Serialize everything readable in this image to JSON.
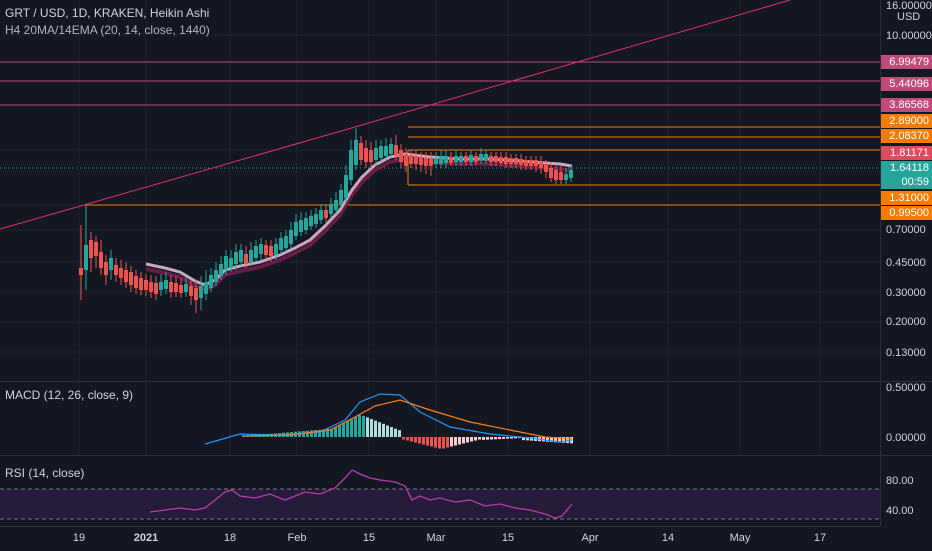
{
  "header": {
    "symbol_line": "GRT / USD, 1D, KRAKEN, Heikin Ashi",
    "indicator_line": "H4 20MA/14EMA (20, 14, close, 1440)"
  },
  "macd": {
    "label": "MACD (12, 26, close, 9)"
  },
  "rsi": {
    "label": "RSI (14, close)"
  },
  "price_axis": {
    "currency": "USD",
    "top_label": "16.00000",
    "ticks": [
      "10.00000",
      "0.70000",
      "0.45000",
      "0.30000",
      "0.20000",
      "0.13000"
    ],
    "tags": [
      {
        "text": "6.99479",
        "color": "#c04a7a"
      },
      {
        "text": "5.44096",
        "color": "#c04a7a"
      },
      {
        "text": "3.86568",
        "color": "#c04a7a"
      },
      {
        "text": "2.89000",
        "color": "#f57c00"
      },
      {
        "text": "2.08370",
        "color": "#f57c00"
      },
      {
        "text": "1.81171",
        "color": "#e04a5e"
      },
      {
        "text": "1.64118",
        "color": "#26a69a"
      },
      {
        "text": "00:59",
        "color": "#26a69a"
      },
      {
        "text": "1.31000",
        "color": "#f57c00"
      },
      {
        "text": "0.99500",
        "color": "#f57c00"
      }
    ]
  },
  "macd_axis": {
    "ticks": [
      "0.50000",
      "0.00000"
    ]
  },
  "rsi_axis": {
    "ticks": [
      "80.00",
      "40.00"
    ]
  },
  "time_axis": {
    "labels": [
      "19",
      "2021",
      "18",
      "Feb",
      "15",
      "Mar",
      "15",
      "Apr",
      "14",
      "May",
      "17"
    ]
  },
  "chart_data": [
    {
      "type": "candlestick",
      "title": "GRT / USD, 1D, KRAKEN, Heikin Ashi",
      "scale": "log",
      "y_ticks": [
        10.0,
        0.7,
        0.45,
        0.3,
        0.2,
        0.13
      ],
      "horizontal_levels": [
        6.99479,
        5.44096,
        3.86568,
        2.89,
        2.0837,
        1.81171,
        1.31,
        0.995
      ],
      "last_price": 1.64118,
      "series": [
        {
          "name": "H4 20MA/14EMA",
          "kind": "moving-average"
        }
      ]
    },
    {
      "type": "line",
      "title": "MACD (12, 26, close, 9)",
      "y_ticks": [
        0.5,
        0.0
      ]
    },
    {
      "type": "line",
      "title": "RSI (14, close)",
      "y_ticks": [
        80,
        40
      ],
      "bands": [
        70,
        30
      ]
    }
  ],
  "colors": {
    "background": "#131722",
    "up": "#26a69a",
    "down": "#ef5350",
    "trendline": "#e0306b",
    "level_pink": "#c04a7a",
    "level_orange": "#f57c00",
    "rsi_line": "#b53fa9",
    "macd_line": "#2196f3",
    "signal_line": "#ff7e18"
  }
}
